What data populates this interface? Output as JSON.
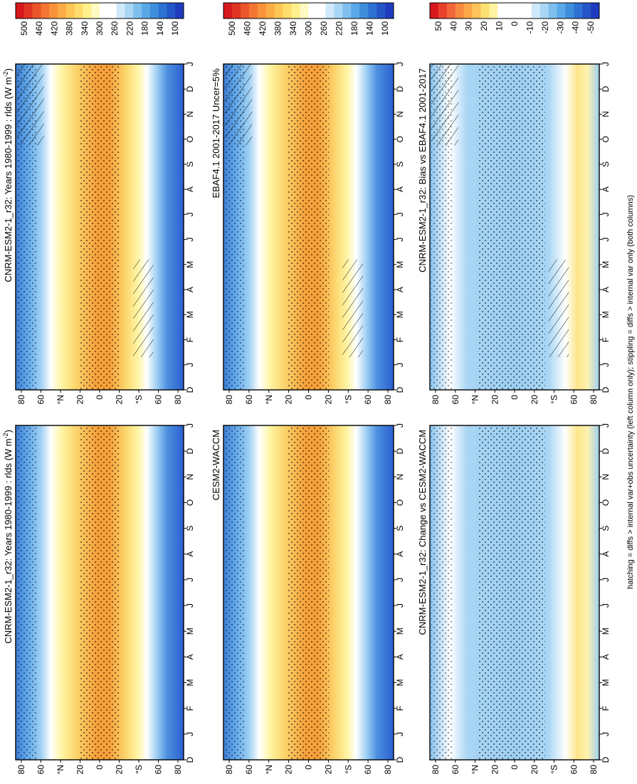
{
  "figure": {
    "footnote": "hatching = diffs > internal var+obs uncertainty (left column only); stippling = diffs > internal var only (both columns)"
  },
  "chart_data": [
    {
      "type": "heatmap",
      "title": "CNRM-ESM2-1_r32: Years 1980-1999 : rlds (W m",
      "title_sup": "-2",
      "title_tail": ")",
      "x_ticks": [
        "D",
        "J",
        "F",
        "M",
        "A",
        "M",
        "J",
        "J",
        "A",
        "S",
        "O",
        "N",
        "D",
        "J"
      ],
      "y_ticks": [
        "80",
        "60",
        "°N",
        "20",
        "0",
        "20",
        "°S",
        "60",
        "80"
      ],
      "colorbar": [
        "500",
        "460",
        "420",
        "380",
        "340",
        "300",
        "260",
        "220",
        "180",
        "140",
        "100"
      ],
      "zlim": [
        100,
        500
      ],
      "stippling": true,
      "hatching": true
    },
    {
      "type": "heatmap",
      "title": "EBAF4.1 2001-2017 Uncer=5%",
      "x_ticks": [
        "D",
        "J",
        "F",
        "M",
        "A",
        "M",
        "J",
        "J",
        "A",
        "S",
        "O",
        "N",
        "D",
        "J"
      ],
      "y_ticks": [
        "80",
        "60",
        "°N",
        "20",
        "0",
        "20",
        "°S",
        "60",
        "80"
      ],
      "colorbar": [
        "500",
        "460",
        "420",
        "380",
        "340",
        "300",
        "260",
        "220",
        "180",
        "140",
        "100"
      ],
      "zlim": [
        100,
        500
      ],
      "stippling": true,
      "hatching": true
    },
    {
      "type": "heatmap",
      "title": "CNRM-ESM2-1_r32: Bias vs EBAF4.1 2001-2017",
      "x_ticks": [
        "D",
        "J",
        "F",
        "M",
        "A",
        "M",
        "J",
        "J",
        "A",
        "S",
        "O",
        "N",
        "D",
        "J"
      ],
      "y_ticks": [
        "80",
        "60",
        "°N",
        "20",
        "0",
        "20",
        "°S",
        "60",
        "80"
      ],
      "colorbar": [
        "50",
        "40",
        "30",
        "20",
        "10",
        "0",
        "-10",
        "-20",
        "-30",
        "-40",
        "-50"
      ],
      "zlim": [
        -50,
        50
      ],
      "stippling": true,
      "hatching": true
    },
    {
      "type": "heatmap",
      "title": "CNRM-ESM2-1_r32: Years 1980-1999 : rlds (W m",
      "title_sup": "-2",
      "title_tail": ")",
      "x_ticks": [
        "D",
        "J",
        "F",
        "M",
        "A",
        "M",
        "J",
        "J",
        "A",
        "S",
        "O",
        "N",
        "D",
        "J"
      ],
      "y_ticks": [
        "80",
        "60",
        "°N",
        "20",
        "0",
        "20",
        "°S",
        "60",
        "80"
      ],
      "colorbar": [
        "500",
        "460",
        "420",
        "380",
        "340",
        "300",
        "260",
        "220",
        "180",
        "140",
        "100"
      ],
      "zlim": [
        100,
        500
      ],
      "stippling": true,
      "hatching": false
    },
    {
      "type": "heatmap",
      "title": "CESM2-WACCM",
      "x_ticks": [
        "D",
        "J",
        "F",
        "M",
        "A",
        "M",
        "J",
        "J",
        "A",
        "S",
        "O",
        "N",
        "D",
        "J"
      ],
      "y_ticks": [
        "80",
        "60",
        "°N",
        "20",
        "0",
        "20",
        "°S",
        "60",
        "80"
      ],
      "colorbar": [
        "500",
        "460",
        "420",
        "380",
        "340",
        "300",
        "260",
        "220",
        "180",
        "140",
        "100"
      ],
      "zlim": [
        100,
        500
      ],
      "stippling": true,
      "hatching": false
    },
    {
      "type": "heatmap",
      "title": "CNRM-ESM2-1_r32: Change vs CESM2-WACCM",
      "x_ticks": [
        "D",
        "J",
        "F",
        "M",
        "A",
        "M",
        "J",
        "J",
        "A",
        "S",
        "O",
        "N",
        "D",
        "J"
      ],
      "y_ticks": [
        "80",
        "60",
        "°N",
        "20",
        "0",
        "20",
        "°S",
        "60",
        "80"
      ],
      "colorbar": [
        "50",
        "40",
        "30",
        "20",
        "10",
        "0",
        "-10",
        "-20",
        "-30",
        "-40",
        "-50"
      ],
      "zlim": [
        -50,
        50
      ],
      "stippling": true,
      "hatching": false
    }
  ]
}
